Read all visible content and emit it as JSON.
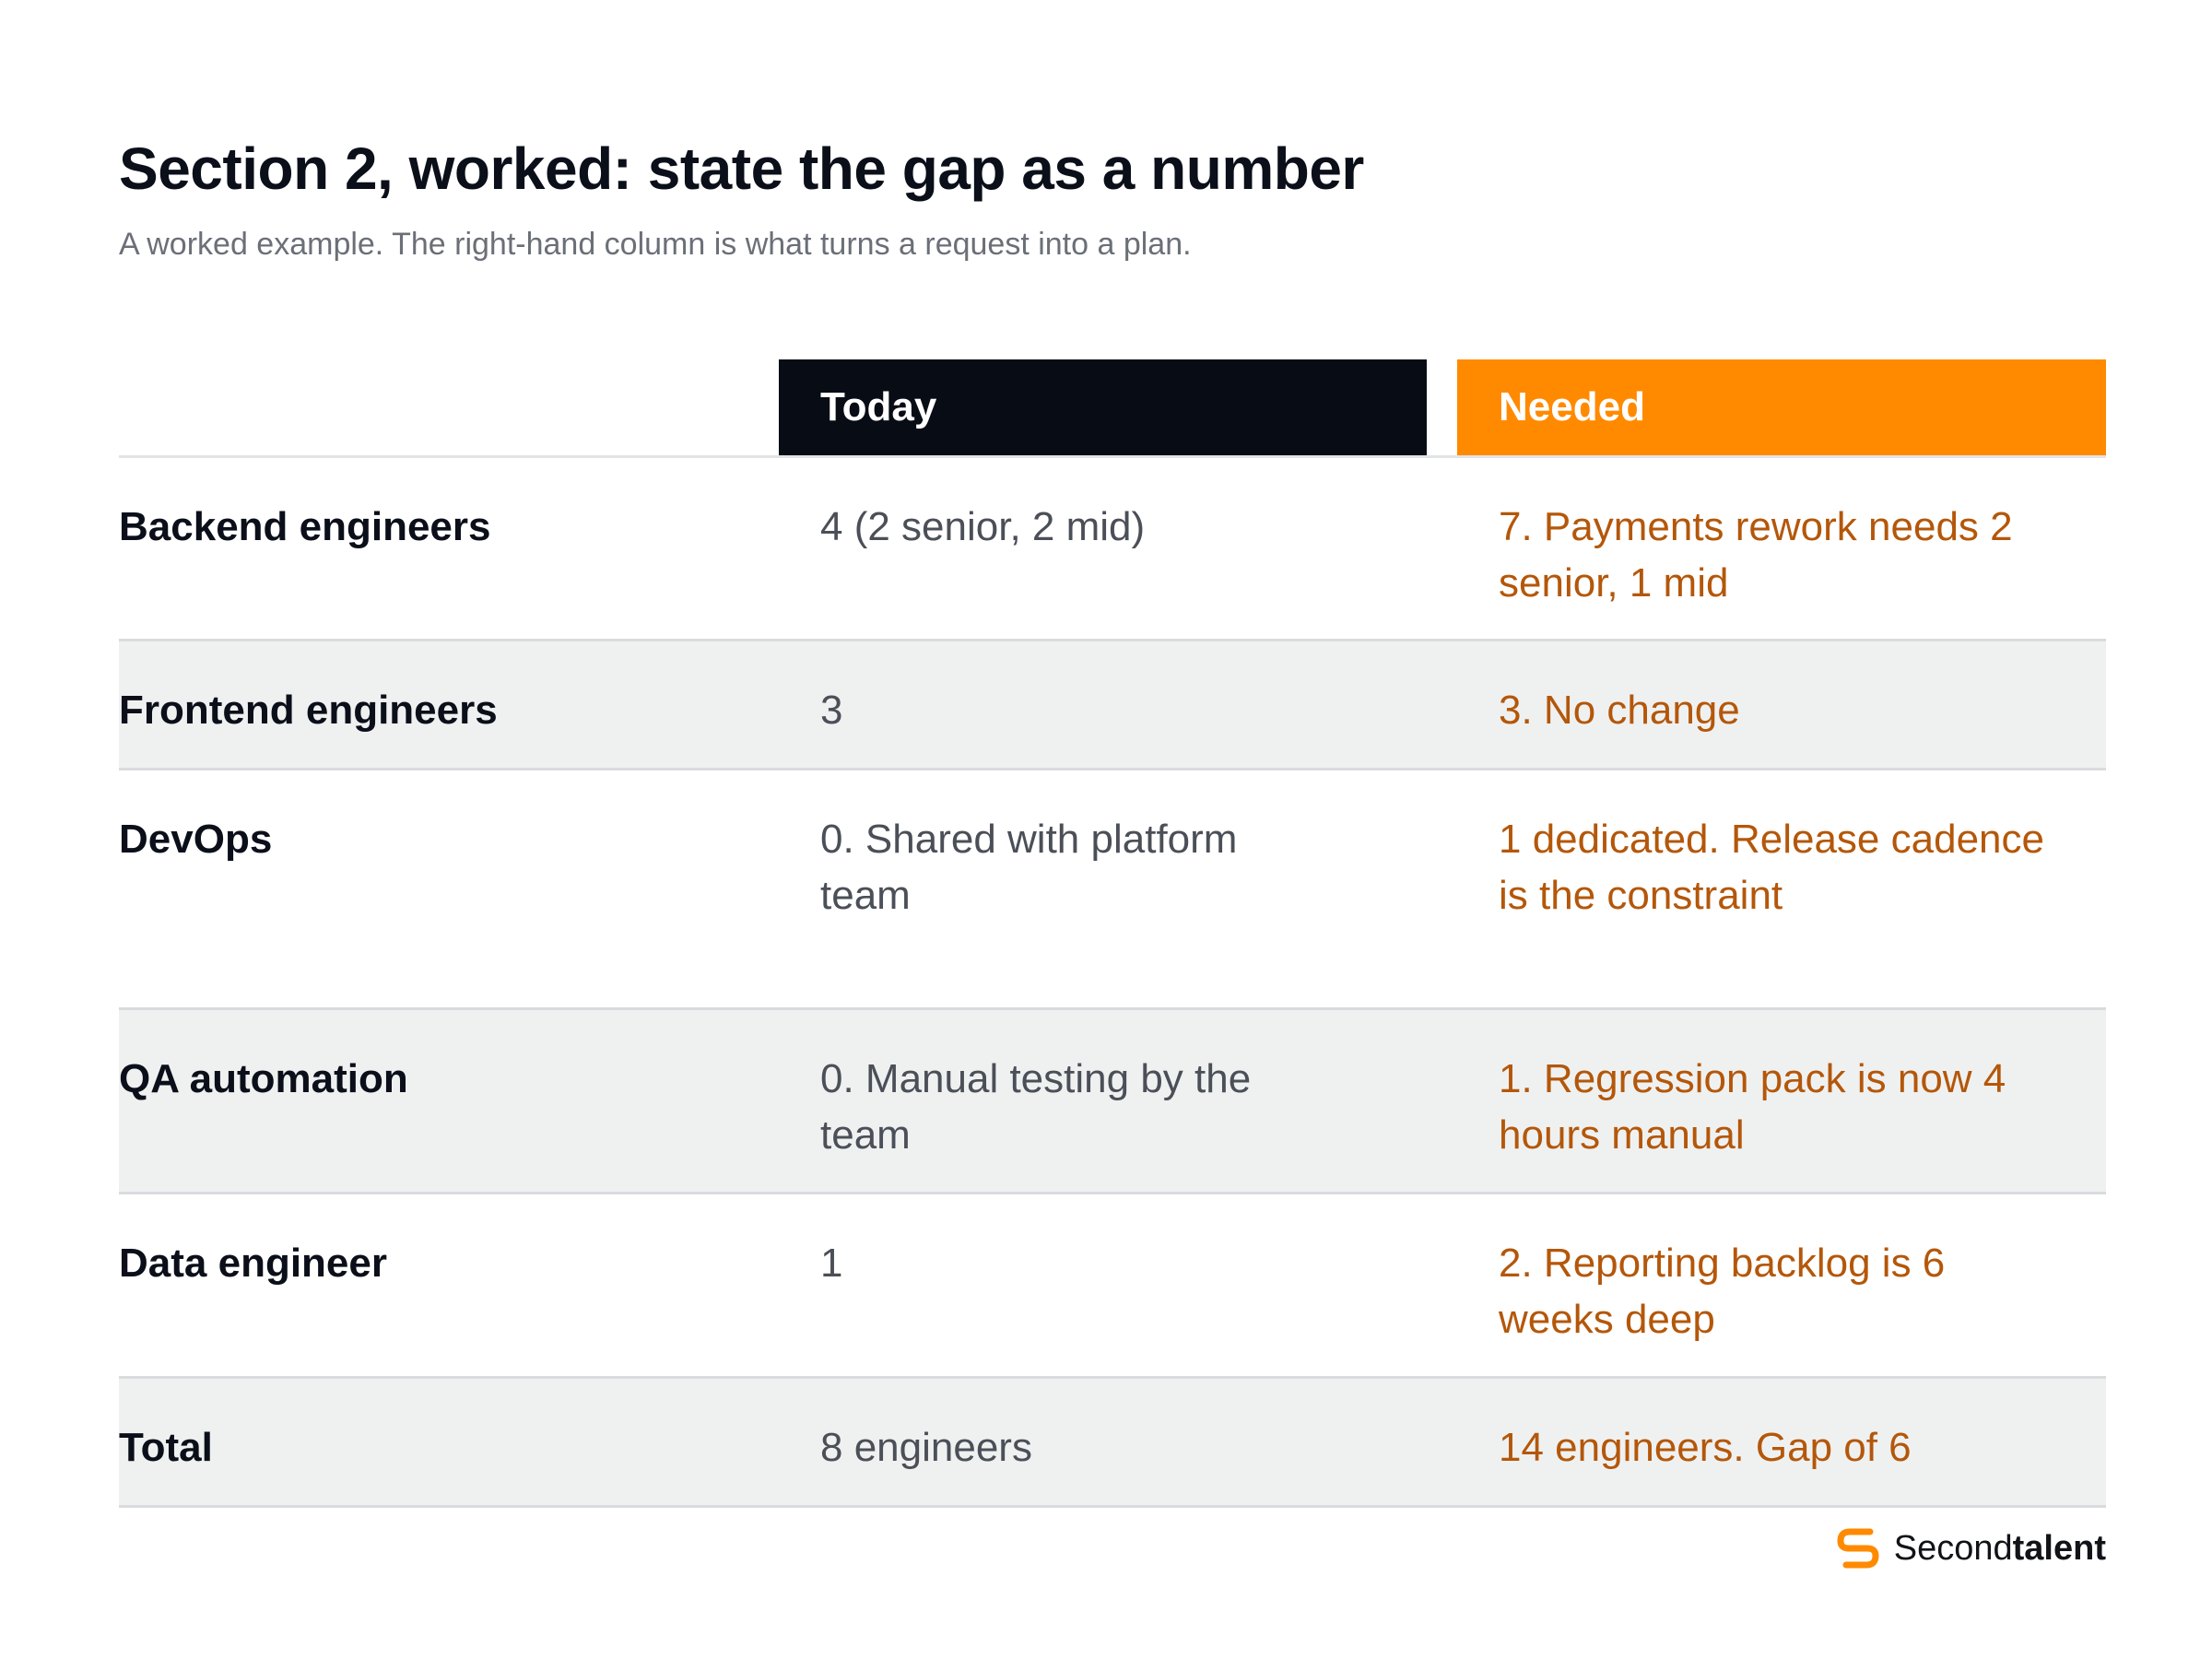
{
  "header": {
    "title": "Section 2, worked: state the gap as a number",
    "subtitle": "A worked example. The right-hand column is what turns a request into a plan."
  },
  "table": {
    "columns": {
      "today": "Today",
      "needed": "Needed"
    },
    "rows": [
      {
        "label": "Backend engineers",
        "today": "4 (2 senior, 2 mid)",
        "needed": "7. Payments rework needs 2 senior, 1 mid"
      },
      {
        "label": "Frontend engineers",
        "today": "3",
        "needed": "3. No change"
      },
      {
        "label": "DevOps",
        "today": "0. Shared with platform team",
        "needed": "1 dedicated. Release cadence is the constraint"
      },
      {
        "label": "QA automation",
        "today": "0. Manual testing by the team",
        "needed": "1. Regression pack is now 4 hours manual"
      },
      {
        "label": "Data engineer",
        "today": "1",
        "needed": "2. Reporting backlog is 6 weeks deep"
      },
      {
        "label": "Total",
        "today": "8 engineers",
        "needed": "14 engineers. Gap of 6"
      }
    ]
  },
  "brand": {
    "name_regular": "Second",
    "name_bold": "talent",
    "icon": "secondtalent-logo-icon",
    "color": "#ff8a00"
  },
  "colors": {
    "today_header": "#080c15",
    "needed_header": "#ff8a00",
    "needed_text": "#b4570a",
    "alt_row": "#eff1f1"
  }
}
